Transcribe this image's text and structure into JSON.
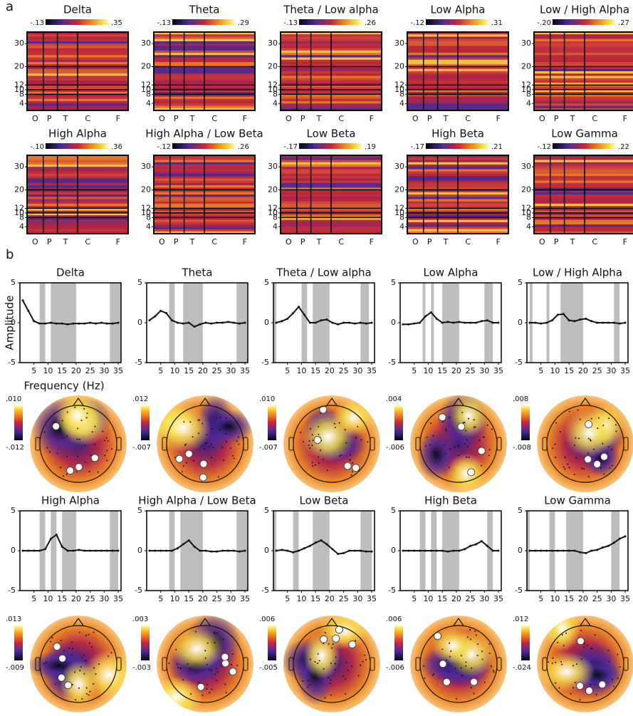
{
  "panel_a": {
    "label": "a",
    "x_labels": [
      "O",
      "P",
      "T",
      "C",
      "F"
    ],
    "ylim": [
      1,
      35
    ],
    "yticks": [
      4,
      8,
      10,
      12,
      20,
      30
    ],
    "maps": [
      {
        "title": "Delta",
        "cmin": "-.13",
        "cmax": ".35"
      },
      {
        "title": "Theta",
        "cmin": "-.13",
        "cmax": ".29"
      },
      {
        "title": "Theta / Low alpha",
        "cmin": "-.13",
        "cmax": ".26"
      },
      {
        "title": "Low Alpha",
        "cmin": "-.12",
        "cmax": ".31"
      },
      {
        "title": "Low / High Alpha",
        "cmin": "-.20",
        "cmax": ".27"
      },
      {
        "title": "High Alpha",
        "cmin": "-.10",
        "cmax": ".36"
      },
      {
        "title": "High Alpha / Low Beta",
        "cmin": "-.12",
        "cmax": ".26"
      },
      {
        "title": "Low Beta",
        "cmin": "-.17",
        "cmax": ".19"
      },
      {
        "title": "High Beta",
        "cmin": "-.17",
        "cmax": ".21"
      },
      {
        "title": "Low Gamma",
        "cmin": "-.12",
        "cmax": ".22"
      }
    ]
  },
  "panel_b": {
    "label": "b",
    "y_label": "Amplitude",
    "x_label": "Frequency (Hz)",
    "topomaps": [
      {
        "cmax": ".010",
        "cmin": "-.012"
      },
      {
        "cmax": ".012",
        "cmin": "-.007"
      },
      {
        "cmax": ".010",
        "cmin": "-.007"
      },
      {
        "cmax": ".004",
        "cmin": "-.006"
      },
      {
        "cmax": ".008",
        "cmin": "-.008"
      },
      {
        "cmax": ".013",
        "cmin": "-.009"
      },
      {
        "cmax": ".003",
        "cmin": "-.003"
      },
      {
        "cmax": ".006",
        "cmin": "-.005"
      },
      {
        "cmax": ".006",
        "cmin": "-.006"
      },
      {
        "cmax": ".012",
        "cmin": "-.024"
      }
    ]
  },
  "chart_data": [
    {
      "type": "line",
      "title": "Delta",
      "x": [
        1,
        3,
        5,
        7,
        9,
        11,
        13,
        15,
        17,
        19,
        21,
        23,
        25,
        27,
        29,
        31,
        33,
        35
      ],
      "values": [
        2.8,
        1.5,
        0.2,
        -0.1,
        -0.1,
        0,
        -0.1,
        -0.1,
        -0.2,
        -0.1,
        -0.1,
        -0.1,
        0,
        -0.1,
        0,
        -0.1,
        -0.1,
        0
      ],
      "shaded": [
        [
          7,
          9
        ],
        [
          11,
          20
        ],
        [
          32,
          36
        ]
      ],
      "xlim": [
        0,
        36
      ],
      "ylim": [
        -5,
        5
      ],
      "xticks": [
        5,
        10,
        15,
        20,
        25,
        30,
        35
      ],
      "yticks": [
        -5,
        0,
        5
      ],
      "color": "#111111"
    },
    {
      "type": "line",
      "title": "Theta",
      "x": [
        1,
        3,
        5,
        7,
        9,
        11,
        13,
        15,
        17,
        19,
        21,
        23,
        25,
        27,
        29,
        31,
        33,
        35
      ],
      "values": [
        0.3,
        0.8,
        1.5,
        1.2,
        0.3,
        0,
        -0.1,
        0,
        -0.5,
        -0.2,
        0,
        -0.1,
        0,
        0,
        0.1,
        0,
        -0.1,
        0
      ],
      "shaded": [
        [
          8,
          10
        ],
        [
          13,
          20
        ],
        [
          32,
          36
        ]
      ],
      "xlim": [
        0,
        36
      ],
      "ylim": [
        -5,
        5
      ],
      "xticks": [
        5,
        10,
        15,
        20,
        25,
        30,
        35
      ],
      "yticks": [
        -5,
        0,
        5
      ],
      "color": "#111111"
    },
    {
      "type": "line",
      "title": "Theta / Low alpha",
      "x": [
        1,
        3,
        5,
        7,
        9,
        11,
        13,
        15,
        17,
        19,
        21,
        23,
        25,
        27,
        29,
        31,
        33,
        35
      ],
      "values": [
        0,
        0.2,
        0.5,
        1.2,
        2,
        1,
        0,
        0,
        0.3,
        0.4,
        0,
        -0.2,
        0,
        0,
        -0.1,
        0,
        -0.1,
        0
      ],
      "shaded": [
        [
          0,
          1
        ],
        [
          10,
          12
        ],
        [
          14,
          20
        ],
        [
          31,
          34
        ]
      ],
      "xlim": [
        0,
        36
      ],
      "ylim": [
        -5,
        5
      ],
      "xticks": [
        5,
        10,
        15,
        20,
        25,
        30,
        35
      ],
      "yticks": [
        -5,
        0,
        5
      ],
      "color": "#111111"
    },
    {
      "type": "line",
      "title": "Low Alpha",
      "x": [
        1,
        3,
        5,
        7,
        9,
        11,
        13,
        15,
        17,
        19,
        21,
        23,
        25,
        27,
        29,
        31,
        33,
        35
      ],
      "values": [
        -0.2,
        -0.2,
        -0.1,
        0,
        0.8,
        1.3,
        0.5,
        0,
        0.1,
        0,
        0.1,
        0,
        0,
        0,
        0.2,
        0.3,
        0,
        0
      ],
      "shaded": [
        [
          8,
          9
        ],
        [
          11,
          12
        ],
        [
          15,
          21
        ],
        [
          30,
          33
        ]
      ],
      "xlim": [
        0,
        36
      ],
      "ylim": [
        -5,
        5
      ],
      "xticks": [
        5,
        10,
        15,
        20,
        25,
        30,
        35
      ],
      "yticks": [
        -5,
        0,
        5
      ],
      "color": "#111111"
    },
    {
      "type": "line",
      "title": "Low / High Alpha",
      "x": [
        1,
        3,
        5,
        7,
        9,
        11,
        13,
        15,
        17,
        19,
        21,
        23,
        25,
        27,
        29,
        31,
        33,
        35
      ],
      "values": [
        0,
        0,
        -0.1,
        0,
        0.3,
        1,
        1.1,
        0.3,
        0.2,
        0.4,
        0.5,
        0.2,
        0,
        0,
        0,
        0,
        -0.1,
        0
      ],
      "shaded": [
        [
          1,
          2
        ],
        [
          7,
          8
        ],
        [
          12,
          20
        ],
        [
          31,
          33
        ]
      ],
      "xlim": [
        0,
        36
      ],
      "ylim": [
        -5,
        5
      ],
      "xticks": [
        5,
        10,
        15,
        20,
        25,
        30,
        35
      ],
      "yticks": [
        -5,
        0,
        5
      ],
      "color": "#111111"
    },
    {
      "type": "line",
      "title": "High Alpha",
      "x": [
        1,
        3,
        5,
        7,
        9,
        11,
        13,
        15,
        17,
        19,
        21,
        23,
        25,
        27,
        29,
        31,
        33,
        35
      ],
      "values": [
        0,
        0,
        0,
        0,
        0.2,
        1.5,
        2,
        0.5,
        0,
        0,
        0.1,
        0,
        0,
        0,
        0,
        0,
        0,
        0
      ],
      "shaded": [
        [
          7,
          9
        ],
        [
          11,
          13
        ],
        [
          15,
          20
        ],
        [
          32,
          35
        ]
      ],
      "xlim": [
        0,
        36
      ],
      "ylim": [
        -5,
        5
      ],
      "xticks": [
        5,
        10,
        15,
        20,
        25,
        30,
        35
      ],
      "yticks": [
        -5,
        0,
        5
      ],
      "color": "#111111"
    },
    {
      "type": "line",
      "title": "High Alpha / Low Beta",
      "x": [
        1,
        3,
        5,
        7,
        9,
        11,
        13,
        15,
        17,
        19,
        21,
        23,
        25,
        27,
        29,
        31,
        33,
        35
      ],
      "values": [
        0,
        0,
        0,
        0,
        0,
        0.3,
        0.8,
        1.3,
        0.5,
        0,
        0,
        -0.1,
        -0.1,
        0,
        0,
        0,
        -0.1,
        0
      ],
      "shaded": [
        [
          8,
          10
        ],
        [
          12,
          20
        ],
        [
          32,
          36
        ]
      ],
      "xlim": [
        0,
        36
      ],
      "ylim": [
        -5,
        5
      ],
      "xticks": [
        5,
        10,
        15,
        20,
        25,
        30,
        35
      ],
      "yticks": [
        -5,
        0,
        5
      ],
      "color": "#111111"
    },
    {
      "type": "line",
      "title": "Low Beta",
      "x": [
        1,
        3,
        5,
        7,
        9,
        11,
        13,
        15,
        17,
        19,
        21,
        23,
        25,
        27,
        29,
        31,
        33,
        35
      ],
      "values": [
        0,
        0.1,
        0,
        -0.2,
        0,
        0.3,
        0.6,
        1,
        1.3,
        0.8,
        0.2,
        -0.4,
        -0.3,
        0,
        0,
        0,
        -0.1,
        -0.1
      ],
      "shaded": [
        [
          0,
          1
        ],
        [
          7,
          9
        ],
        [
          14,
          20
        ],
        [
          31,
          35
        ]
      ],
      "xlim": [
        0,
        36
      ],
      "ylim": [
        -5,
        5
      ],
      "xticks": [
        5,
        10,
        15,
        20,
        25,
        30,
        35
      ],
      "yticks": [
        -5,
        0,
        5
      ],
      "color": "#111111"
    },
    {
      "type": "line",
      "title": "High Beta",
      "x": [
        1,
        3,
        5,
        7,
        9,
        11,
        13,
        15,
        17,
        19,
        21,
        23,
        25,
        27,
        29,
        31,
        33,
        35
      ],
      "values": [
        0,
        0,
        0,
        0,
        0,
        0,
        0,
        0,
        -0.1,
        0,
        0,
        0.2,
        0.6,
        0.8,
        1.2,
        0.6,
        0,
        0
      ],
      "shaded": [
        [
          7,
          9
        ],
        [
          11,
          13
        ],
        [
          15,
          21
        ],
        [
          31,
          33
        ]
      ],
      "xlim": [
        0,
        36
      ],
      "ylim": [
        -5,
        5
      ],
      "xticks": [
        5,
        10,
        15,
        20,
        25,
        30,
        35
      ],
      "yticks": [
        -5,
        0,
        5
      ],
      "color": "#111111"
    },
    {
      "type": "line",
      "title": "Low Gamma",
      "x": [
        1,
        3,
        5,
        7,
        9,
        11,
        13,
        15,
        17,
        19,
        21,
        23,
        25,
        27,
        29,
        31,
        33,
        35
      ],
      "values": [
        0,
        0,
        0,
        0,
        0,
        0,
        0,
        0,
        0,
        -0.2,
        -0.3,
        0,
        0.1,
        0.4,
        0.6,
        1,
        1.5,
        1.8
      ],
      "shaded": [
        [
          0,
          1
        ],
        [
          8,
          10
        ],
        [
          14,
          20
        ],
        [
          30,
          33
        ]
      ],
      "xlim": [
        0,
        36
      ],
      "ylim": [
        -5,
        5
      ],
      "xticks": [
        5,
        10,
        15,
        20,
        25,
        30,
        35
      ],
      "yticks": [
        -5,
        0,
        5
      ],
      "color": "#111111"
    }
  ]
}
